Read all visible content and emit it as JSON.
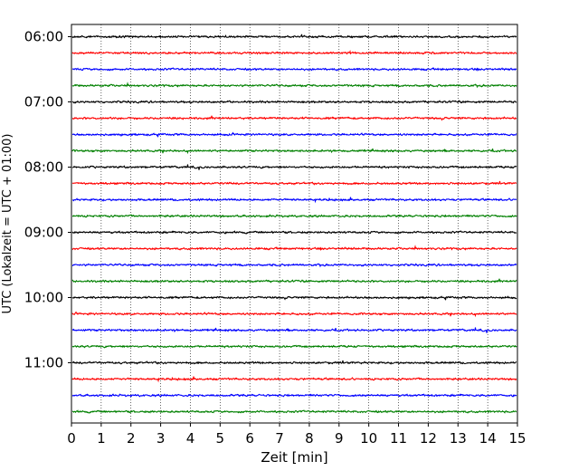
{
  "chart_data": {
    "type": "line",
    "title": "",
    "xlabel": "Zeit  [min]",
    "ylabel": "UTC (Lokalzeit = UTC + 01:00)",
    "xlim": [
      0,
      15
    ],
    "x_ticks": [
      0,
      1,
      2,
      3,
      4,
      5,
      6,
      7,
      8,
      9,
      10,
      11,
      12,
      13,
      14,
      15
    ],
    "y_ticks": [
      "06:00",
      "07:00",
      "08:00",
      "09:00",
      "10:00",
      "11:00"
    ],
    "grid": "vertical dotted at each minute",
    "legend": "none",
    "trace_interval_minutes": 15,
    "trace_start": "06:00",
    "trace_end": "11:45",
    "trace_count": 24,
    "trace_colors": [
      "#000000",
      "#ff0000",
      "#0000ff",
      "#008000"
    ]
  }
}
